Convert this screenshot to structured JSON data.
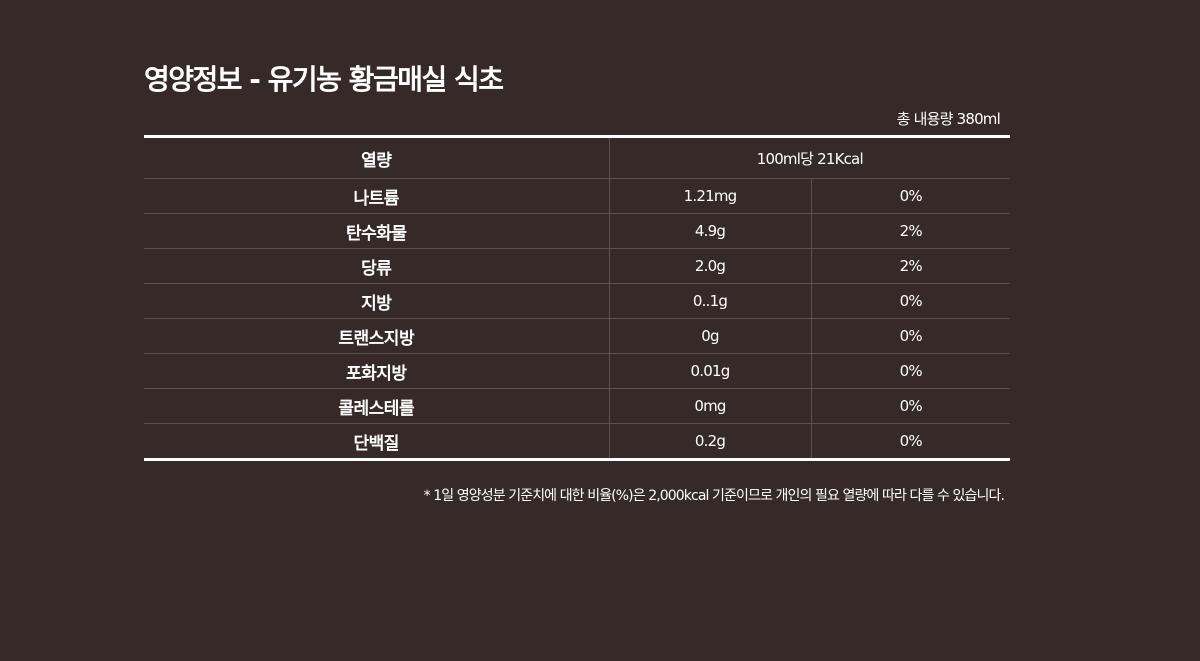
{
  "title": "영양정보 - 유기농 황금매실 식초",
  "total_volume": "총 내용량 380ml",
  "energy": {
    "label": "열량",
    "value": "100ml당 21Kcal"
  },
  "nutrients": [
    {
      "name": "나트륨",
      "amount": "1.21mg",
      "percent": "0%"
    },
    {
      "name": "탄수화물",
      "amount": "4.9g",
      "percent": "2%"
    },
    {
      "name": "당류",
      "amount": "2.0g",
      "percent": "2%"
    },
    {
      "name": "지방",
      "amount": "0..1g",
      "percent": "0%"
    },
    {
      "name": "트랜스지방",
      "amount": "0g",
      "percent": "0%"
    },
    {
      "name": "포화지방",
      "amount": "0.01g",
      "percent": "0%"
    },
    {
      "name": "콜레스테롤",
      "amount": "0mg",
      "percent": "0%"
    },
    {
      "name": "단백질",
      "amount": "0.2g",
      "percent": "0%"
    }
  ],
  "footnote": "* 1일 영양성분 기준치에 대한 비율(%)은 2,000kcal 기준이므로 개인의 필요 열량에 따라 다를 수 있습니다.",
  "colors": {
    "background": "#352a27",
    "text": "#ffffff",
    "rule": "#ffffff",
    "divider": "#5c504c"
  }
}
